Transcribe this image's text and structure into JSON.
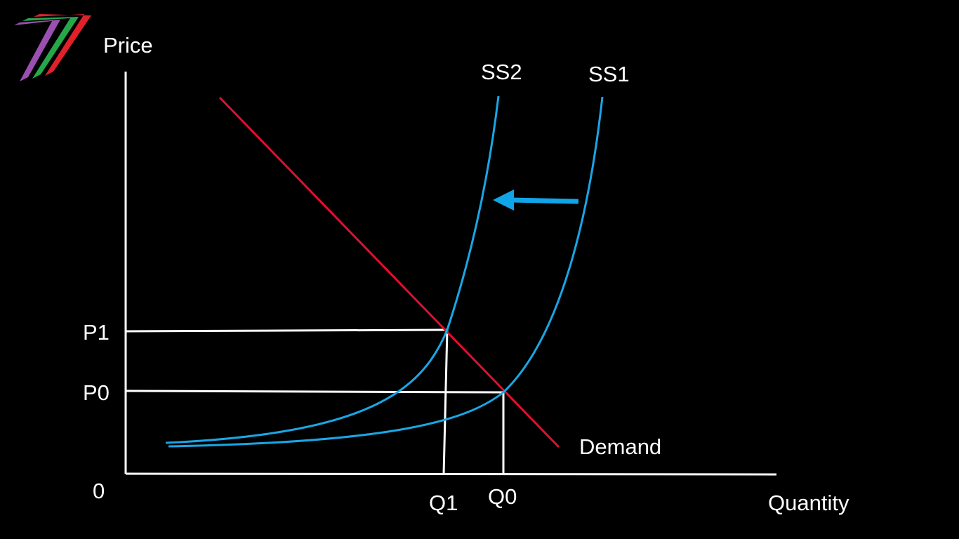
{
  "diagram": {
    "type": "supply-demand",
    "y_axis_label": "Price",
    "x_axis_label": "Quantity",
    "origin_label": "0",
    "price_levels": [
      {
        "label": "P1",
        "meaning": "new price"
      },
      {
        "label": "P0",
        "meaning": "original price"
      }
    ],
    "quantity_levels": [
      {
        "label": "Q1",
        "meaning": "new quantity"
      },
      {
        "label": "Q0",
        "meaning": "original quantity"
      }
    ],
    "curves": {
      "demand": {
        "label": "Demand",
        "color": "#e0102f"
      },
      "supply_original": {
        "label": "SS1",
        "color": "#19a6e6"
      },
      "supply_new": {
        "label": "SS2",
        "color": "#19a6e6"
      }
    },
    "shift_arrow": {
      "direction": "left",
      "color": "#0fa5e8"
    },
    "axis_color": "#ffffff",
    "guide_color": "#ffffff"
  },
  "logo": {
    "colors": [
      "#9b4fb0",
      "#26a84a",
      "#e0212b"
    ]
  }
}
